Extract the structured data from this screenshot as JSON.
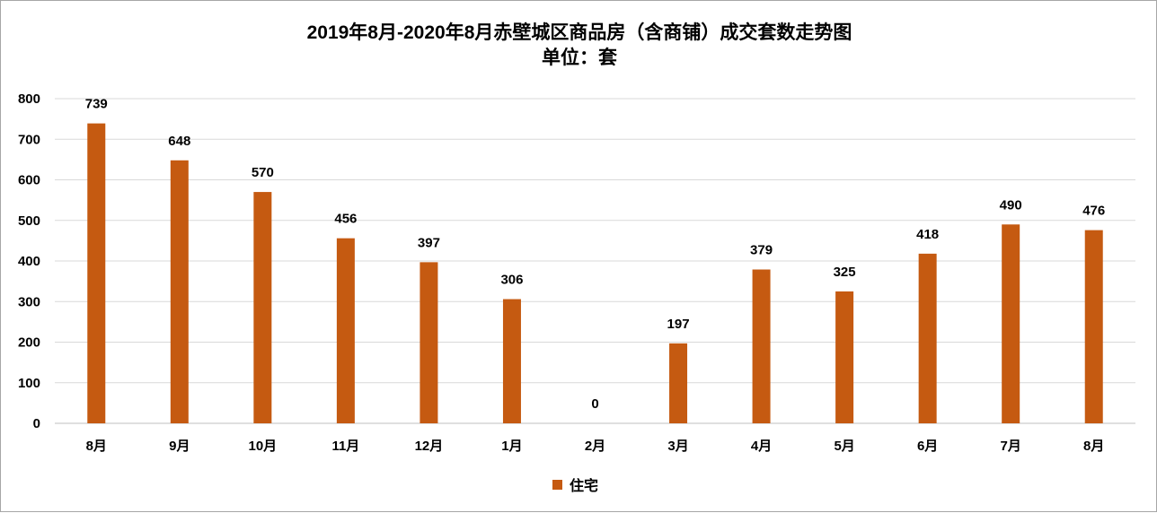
{
  "chart_data": {
    "type": "bar",
    "title": "2019年8月-2020年8月赤壁城区商品房（含商铺）成交套数走势图",
    "subtitle": "单位：套",
    "categories": [
      "8月",
      "9月",
      "10月",
      "11月",
      "12月",
      "1月",
      "2月",
      "3月",
      "4月",
      "5月",
      "6月",
      "7月",
      "8月"
    ],
    "series": [
      {
        "name": "住宅",
        "values": [
          739,
          648,
          570,
          456,
          397,
          306,
          0,
          197,
          379,
          325,
          418,
          490,
          476
        ],
        "color": "#c55a11"
      }
    ],
    "ylim": [
      0,
      800
    ],
    "yticks": [
      "0",
      "100",
      "200",
      "300",
      "400",
      "500",
      "600",
      "700",
      "800"
    ],
    "grid": true,
    "data_labels": true,
    "legend_position": "bottom"
  }
}
